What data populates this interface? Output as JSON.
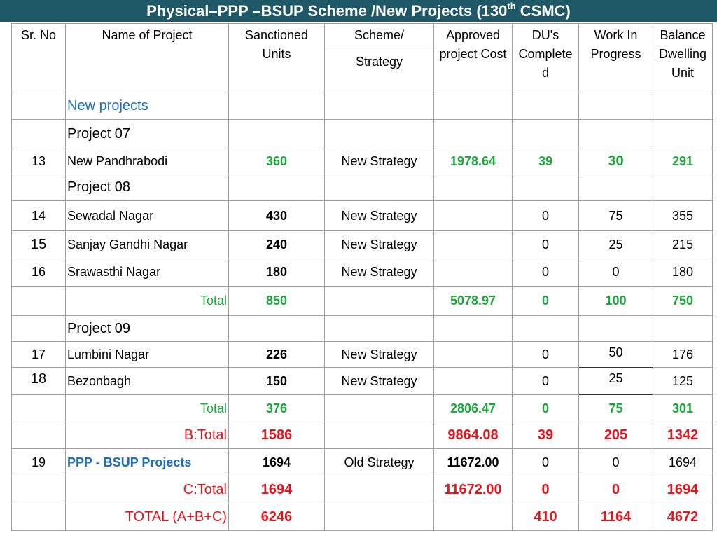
{
  "title": {
    "main": "Physical–PPP –BSUP Scheme /New Projects (130",
    "sup": "th",
    "end": " CSMC)"
  },
  "headers": {
    "sr_no": "Sr. No",
    "name": "Name of Project",
    "sanctioned": "Sanctioned Units",
    "scheme": "Scheme/",
    "strategy": "Strategy",
    "cost": "Approved project Cost",
    "du": "DU's Complete d",
    "wip": "Work In Progress",
    "balance": "Balance Dwelling Unit"
  },
  "sections": {
    "new_projects": "New projects",
    "p07": "Project 07",
    "p08": "Project 08",
    "p09": "Project 09"
  },
  "rows": {
    "r13": {
      "sr": "13",
      "name": "New Pandhrabodi",
      "units": "360",
      "scheme": "New Strategy",
      "cost": "1978.64",
      "du": "39",
      "wip": "30",
      "bal": "291"
    },
    "r14": {
      "sr": "14",
      "name": "Sewadal Nagar",
      "units": "430",
      "scheme": "New Strategy",
      "cost": "",
      "du": "0",
      "wip": "75",
      "bal": "355"
    },
    "r15": {
      "sr": "15",
      "name": "Sanjay Gandhi Nagar",
      "units": "240",
      "scheme": "New Strategy",
      "cost": "",
      "du": "0",
      "wip": "25",
      "bal": "215"
    },
    "r16": {
      "sr": "16",
      "name": "Srawasthi Nagar",
      "units": "180",
      "scheme": "New Strategy",
      "cost": "",
      "du": "0",
      "wip": "0",
      "bal": "180"
    },
    "t08": {
      "label": "Total",
      "units": "850",
      "cost": "5078.97",
      "du": "0",
      "wip": "100",
      "bal": "750"
    },
    "r17": {
      "sr": "17",
      "name": "Lumbini Nagar",
      "units": "226",
      "scheme": "New Strategy",
      "cost": "",
      "du": "0",
      "wip": "50",
      "bal": "176"
    },
    "r18": {
      "sr": "18",
      "name": "Bezonbagh",
      "units": "150",
      "scheme": "New Strategy",
      "cost": "",
      "du": "0",
      "wip": "25",
      "bal": "125"
    },
    "t09": {
      "label": "Total",
      "units": "376",
      "cost": "2806.47",
      "du": "0",
      "wip": "75",
      "bal": "301"
    },
    "btotal": {
      "label": "B:Total",
      "units": "1586",
      "cost": "9864.08",
      "du": "39",
      "wip": "205",
      "bal": "1342"
    },
    "r19": {
      "sr": "19",
      "name": "PPP - BSUP Projects",
      "units": "1694",
      "scheme": "Old Strategy",
      "cost": "11672.00",
      "du": "0",
      "wip": "0",
      "bal": "1694"
    },
    "ctotal": {
      "label": "C:Total",
      "units": "1694",
      "cost": "11672.00",
      "du": "0",
      "wip": "0",
      "bal": "1694"
    },
    "grand": {
      "label": "TOTAL (A+B+C)",
      "units": "6246",
      "cost": "",
      "du": "410",
      "wip": "1164",
      "bal": "4672"
    }
  }
}
